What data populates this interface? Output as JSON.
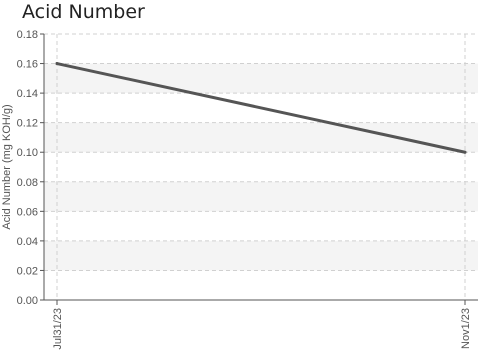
{
  "chart_data": {
    "type": "line",
    "title": "Acid Number",
    "xlabel": "",
    "ylabel": "Acid Number (mg KOH/g)",
    "ylim": [
      0,
      0.18
    ],
    "yticks": [
      "0.00",
      "0.02",
      "0.04",
      "0.06",
      "0.08",
      "0.10",
      "0.12",
      "0.14",
      "0.16",
      "0.18"
    ],
    "x": [
      "Jul31/23",
      "Nov1/23"
    ],
    "series": [
      {
        "values": [
          0.16,
          0.1
        ]
      }
    ],
    "grid": true,
    "colors": {
      "line": "#555555",
      "band": "#f4f4f4",
      "grid": "#d0d0d0"
    }
  }
}
